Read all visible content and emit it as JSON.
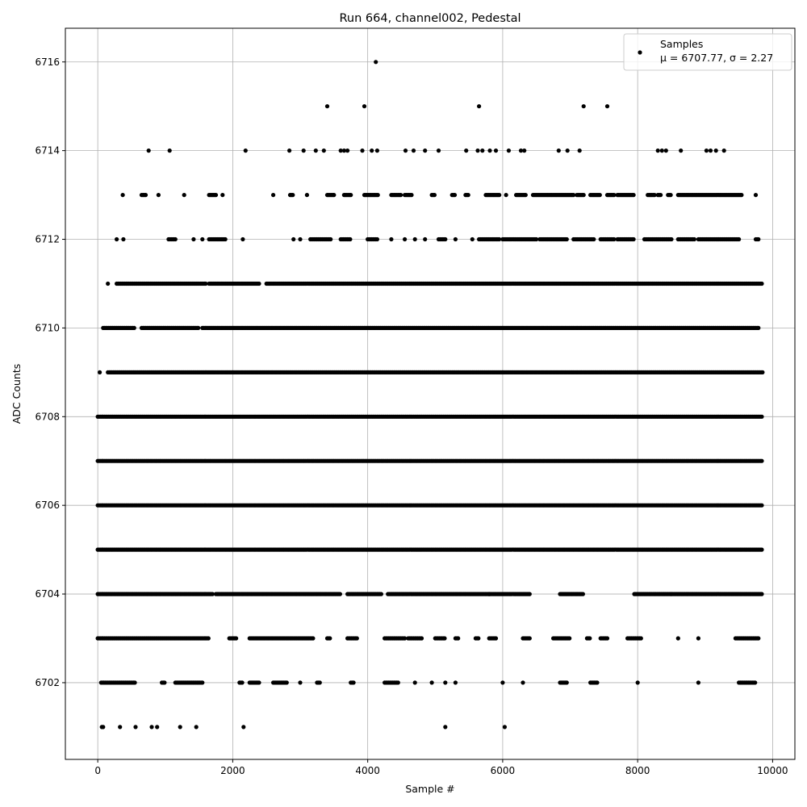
{
  "chart_data": {
    "type": "scatter",
    "title": "Run 664, channel002, Pedestal",
    "xlabel": "Sample #",
    "ylabel": "ADC Counts",
    "xlim": [
      -480,
      10330
    ],
    "ylim": [
      6700.27,
      6716.76
    ],
    "xticks": [
      0,
      2000,
      4000,
      6000,
      8000,
      10000
    ],
    "yticks": [
      6702,
      6704,
      6706,
      6708,
      6710,
      6712,
      6714,
      6716
    ],
    "grid": true,
    "marker_color": "#000000",
    "legend": {
      "placement": "top-right",
      "entries": [
        "Samples",
        "μ = 6707.77, σ = 2.27"
      ]
    },
    "series": [
      {
        "name": "Samples",
        "points_by_level": [
          {
            "y": 6716,
            "x": [
              4120
            ]
          },
          {
            "y": 6715,
            "x": [
              3400,
              3950,
              5650,
              7200,
              7550
            ]
          },
          {
            "y": 6714,
            "x": [
              754,
              1065,
              2190,
              2840,
              3050,
              3230,
              3350,
              3600,
              3650,
              3700,
              3920,
              4060,
              4140,
              4560,
              4680,
              4850,
              5050,
              5460,
              5630,
              5700,
              5810,
              5900,
              6090,
              6270,
              6320,
              6830,
              6960,
              7140,
              8300,
              8360,
              8420,
              8640,
              9020,
              9080,
              9160,
              9280
            ]
          },
          {
            "y": 6701,
            "x": [
              60,
              80,
              330,
              560,
              800,
              880,
              1220,
              1460,
              2160,
              5150,
              6030
            ]
          }
        ],
        "occupied_ranges_by_level": [
          {
            "y": 6713,
            "ranges": [
              [
                370,
                370
              ],
              [
                650,
                720
              ],
              [
                900,
                900
              ],
              [
                1280,
                1280
              ],
              [
                1650,
                1750
              ],
              [
                1850,
                1850
              ],
              [
                2600,
                2600
              ],
              [
                2850,
                2900
              ],
              [
                3100,
                3100
              ],
              [
                3400,
                3500
              ],
              [
                3650,
                3750
              ],
              [
                3950,
                4150
              ],
              [
                4350,
                4500
              ],
              [
                4550,
                4650
              ],
              [
                4950,
                5000
              ],
              [
                5250,
                5300
              ],
              [
                5450,
                5500
              ],
              [
                5750,
                5950
              ],
              [
                6050,
                6050
              ],
              [
                6200,
                6350
              ],
              [
                6450,
                7050
              ],
              [
                7100,
                7200
              ],
              [
                7300,
                7450
              ],
              [
                7550,
                7650
              ],
              [
                7700,
                7950
              ],
              [
                8150,
                8250
              ],
              [
                8300,
                8350
              ],
              [
                8450,
                8500
              ],
              [
                8600,
                9550
              ],
              [
                9750,
                9750
              ]
            ]
          },
          {
            "y": 6712,
            "ranges": [
              [
                280,
                280
              ],
              [
                380,
                380
              ],
              [
                1050,
                1150
              ],
              [
                1420,
                1420
              ],
              [
                1550,
                1550
              ],
              [
                1650,
                1900
              ],
              [
                2150,
                2150
              ],
              [
                2900,
                2900
              ],
              [
                3000,
                3000
              ],
              [
                3150,
                3450
              ],
              [
                3600,
                3750
              ],
              [
                4000,
                4150
              ],
              [
                4350,
                4350
              ],
              [
                4550,
                4550
              ],
              [
                4700,
                4700
              ],
              [
                4850,
                4850
              ],
              [
                5050,
                5150
              ],
              [
                5300,
                5300
              ],
              [
                5550,
                5550
              ],
              [
                5650,
                5950
              ],
              [
                6000,
                6500
              ],
              [
                6550,
                6950
              ],
              [
                7050,
                7350
              ],
              [
                7450,
                7650
              ],
              [
                7700,
                7950
              ],
              [
                8100,
                8500
              ],
              [
                8600,
                8850
              ],
              [
                8900,
                9500
              ],
              [
                9750,
                9800
              ]
            ]
          },
          {
            "y": 6711,
            "ranges": [
              [
                150,
                150
              ],
              [
                280,
                1600
              ],
              [
                1650,
                2400
              ],
              [
                2500,
                9850
              ]
            ]
          },
          {
            "y": 6710,
            "ranges": [
              [
                80,
                550
              ],
              [
                650,
                1500
              ],
              [
                1550,
                9800
              ]
            ]
          },
          {
            "y": 6709,
            "ranges": [
              [
                30,
                30
              ],
              [
                150,
                9850
              ]
            ]
          },
          {
            "y": 6708,
            "ranges": [
              [
                0,
                9850
              ]
            ]
          },
          {
            "y": 6707,
            "ranges": [
              [
                0,
                9850
              ]
            ]
          },
          {
            "y": 6706,
            "ranges": [
              [
                0,
                9850
              ]
            ]
          },
          {
            "y": 6705,
            "ranges": [
              [
                0,
                9850
              ]
            ]
          },
          {
            "y": 6704,
            "ranges": [
              [
                0,
                1700
              ],
              [
                1750,
                3600
              ],
              [
                3700,
                4200
              ],
              [
                4300,
                5800
              ],
              [
                5800,
                6400
              ],
              [
                6850,
                7200
              ],
              [
                7950,
                8500
              ],
              [
                8500,
                9850
              ]
            ]
          },
          {
            "y": 6703,
            "ranges": [
              [
                0,
                1650
              ],
              [
                1950,
                2050
              ],
              [
                2250,
                3200
              ],
              [
                3400,
                3450
              ],
              [
                3700,
                3850
              ],
              [
                4250,
                4550
              ],
              [
                4600,
                4800
              ],
              [
                5000,
                5150
              ],
              [
                5300,
                5350
              ],
              [
                5600,
                5650
              ],
              [
                5800,
                5900
              ],
              [
                6300,
                6400
              ],
              [
                6750,
                7000
              ],
              [
                7250,
                7300
              ],
              [
                7450,
                7550
              ],
              [
                7850,
                8050
              ],
              [
                8600,
                8600
              ],
              [
                8900,
                8900
              ],
              [
                9450,
                9800
              ]
            ]
          },
          {
            "y": 6702,
            "ranges": [
              [
                50,
                550
              ],
              [
                950,
                1000
              ],
              [
                1150,
                1550
              ],
              [
                2100,
                2150
              ],
              [
                2250,
                2400
              ],
              [
                2600,
                2800
              ],
              [
                3000,
                3000
              ],
              [
                3250,
                3300
              ],
              [
                3750,
                3800
              ],
              [
                4250,
                4450
              ],
              [
                4700,
                4700
              ],
              [
                4950,
                4950
              ],
              [
                5150,
                5150
              ],
              [
                5300,
                5300
              ],
              [
                6000,
                6000
              ],
              [
                6300,
                6300
              ],
              [
                6850,
                6950
              ],
              [
                7300,
                7400
              ],
              [
                8000,
                8000
              ],
              [
                8900,
                8900
              ],
              [
                9500,
                9750
              ]
            ]
          }
        ]
      }
    ]
  }
}
